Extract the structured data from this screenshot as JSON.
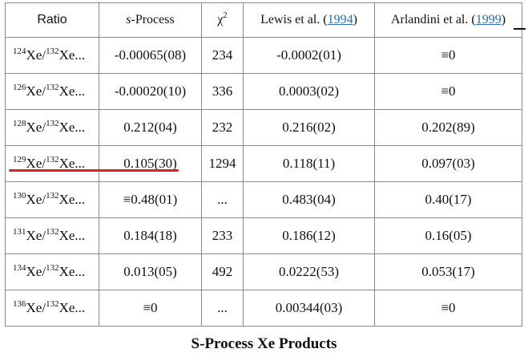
{
  "header": {
    "ratio": "Ratio",
    "sprocess_s": "s",
    "sprocess_rest": "-Process",
    "chi": "χ",
    "chi_sup": "2",
    "lewis_prefix": "Lewis et al. (",
    "lewis_year": "1994",
    "lewis_suffix": ")",
    "arl_prefix": "Arlandini et al. (",
    "arl_year": "1999",
    "arl_suffix": ")"
  },
  "rows": [
    {
      "iso": "124",
      "den": "132",
      "elem": "Xe",
      "tail": "Xe...",
      "sproc": "-0.00065(08)",
      "chi2": "234",
      "lewis": "-0.0002(01)",
      "arl": "≡0"
    },
    {
      "iso": "126",
      "den": "132",
      "elem": "Xe",
      "tail": "Xe...",
      "sproc": "-0.00020(10)",
      "chi2": "336",
      "lewis": "0.0003(02)",
      "arl": "≡0"
    },
    {
      "iso": "128",
      "den": "132",
      "elem": "Xe",
      "tail": "Xe...",
      "sproc": "0.212(04)",
      "chi2": "232",
      "lewis": "0.216(02)",
      "arl": "0.202(89)"
    },
    {
      "iso": "129",
      "den": "132",
      "elem": "Xe",
      "tail": "Xe...",
      "sproc": "0.105(30)",
      "chi2": "1294",
      "lewis": "0.118(11)",
      "arl": "0.097(03)"
    },
    {
      "iso": "130",
      "den": "132",
      "elem": "Xe",
      "tail": "Xe...",
      "sproc": "≡0.48(01)",
      "chi2": "...",
      "lewis": "0.483(04)",
      "arl": "0.40(17)"
    },
    {
      "iso": "131",
      "den": "132",
      "elem": "Xe",
      "tail": "Xe...",
      "sproc": "0.184(18)",
      "chi2": "233",
      "lewis": "0.186(12)",
      "arl": "0.16(05)"
    },
    {
      "iso": "134",
      "den": "132",
      "elem": "Xe",
      "tail": "Xe...",
      "sproc": "0.013(05)",
      "chi2": "492",
      "lewis": "0.0222(53)",
      "arl": "0.053(17)"
    },
    {
      "iso": "136",
      "den": "132",
      "elem": "Xe",
      "tail": "Xe...",
      "sproc": "≡0",
      "chi2": "...",
      "lewis": "0.00344(03)",
      "arl": "≡0"
    }
  ],
  "caption": "S-Process Xe Products",
  "colors": {
    "link": "#2a6fb8",
    "highlight": "#e0211d"
  }
}
